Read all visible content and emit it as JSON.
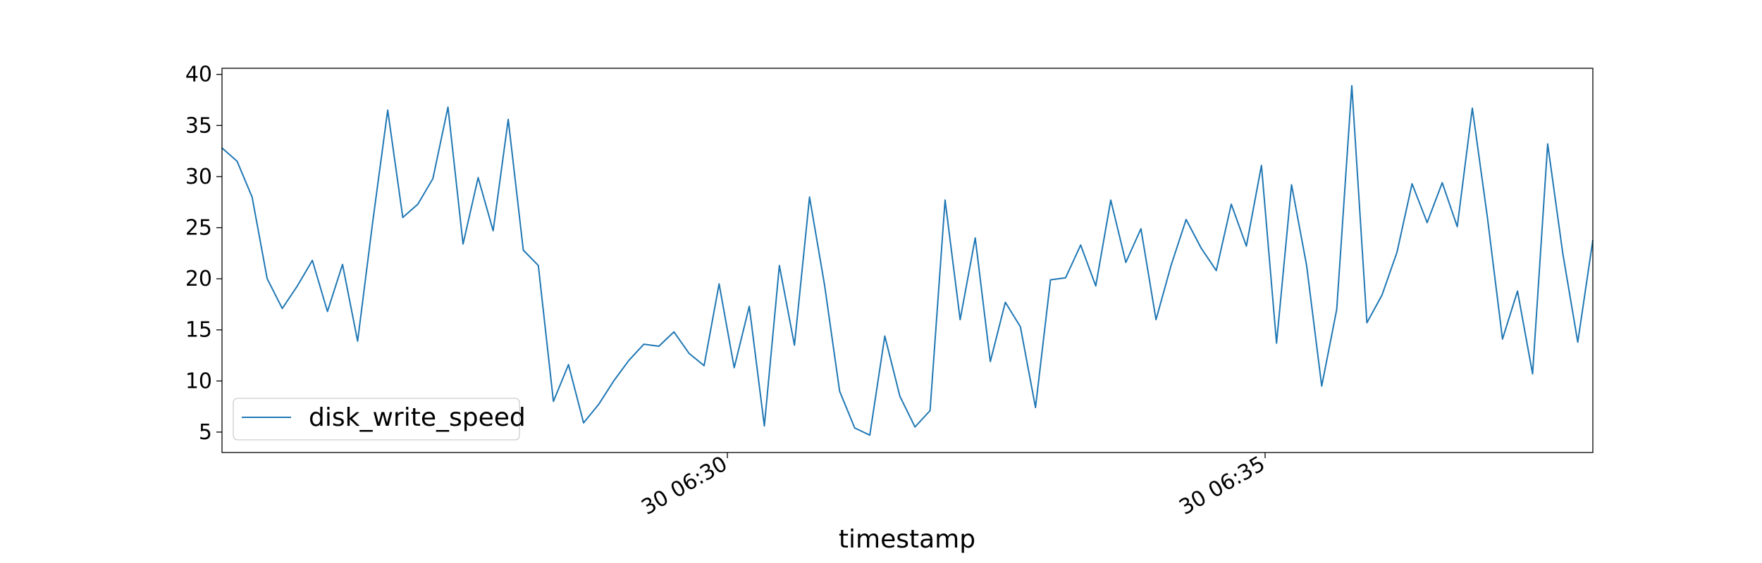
{
  "chart_data": {
    "type": "line",
    "xlabel": "timestamp",
    "ylabel": "",
    "title": "",
    "x_ticks": [
      "30 06:30",
      "30 06:35"
    ],
    "y_ticks": [
      5,
      10,
      15,
      20,
      25,
      30,
      35,
      40
    ],
    "ylim": [
      3.0,
      40.6
    ],
    "legend": {
      "position": "lower-left"
    },
    "series": [
      {
        "name": "disk_write_speed",
        "color": "#1f77b4",
        "values": [
          32.8,
          31.5,
          28.0,
          20.0,
          17.1,
          19.3,
          21.8,
          16.8,
          21.4,
          13.9,
          25.5,
          36.5,
          26.0,
          27.3,
          29.8,
          36.8,
          23.4,
          29.9,
          24.7,
          35.6,
          22.8,
          21.3,
          8.0,
          11.6,
          5.9,
          7.7,
          10.0,
          12.0,
          13.6,
          13.4,
          14.8,
          12.7,
          11.5,
          19.5,
          11.3,
          17.3,
          5.6,
          21.3,
          13.5,
          28.0,
          19.4,
          9.0,
          5.4,
          4.7,
          14.4,
          8.5,
          5.5,
          7.1,
          27.7,
          16.0,
          24.0,
          11.9,
          17.7,
          15.3,
          7.4,
          19.9,
          20.1,
          23.3,
          19.3,
          27.7,
          21.6,
          24.9,
          16.0,
          21.3,
          25.8,
          23.0,
          20.8,
          27.3,
          23.2,
          31.1,
          13.7,
          29.2,
          21.3,
          9.5,
          17.0,
          38.9,
          15.7,
          18.4,
          22.6,
          29.3,
          25.5,
          29.4,
          25.1,
          36.7,
          26.0,
          14.1,
          18.8,
          10.7,
          33.2,
          22.5,
          13.8,
          23.8
        ]
      }
    ]
  }
}
